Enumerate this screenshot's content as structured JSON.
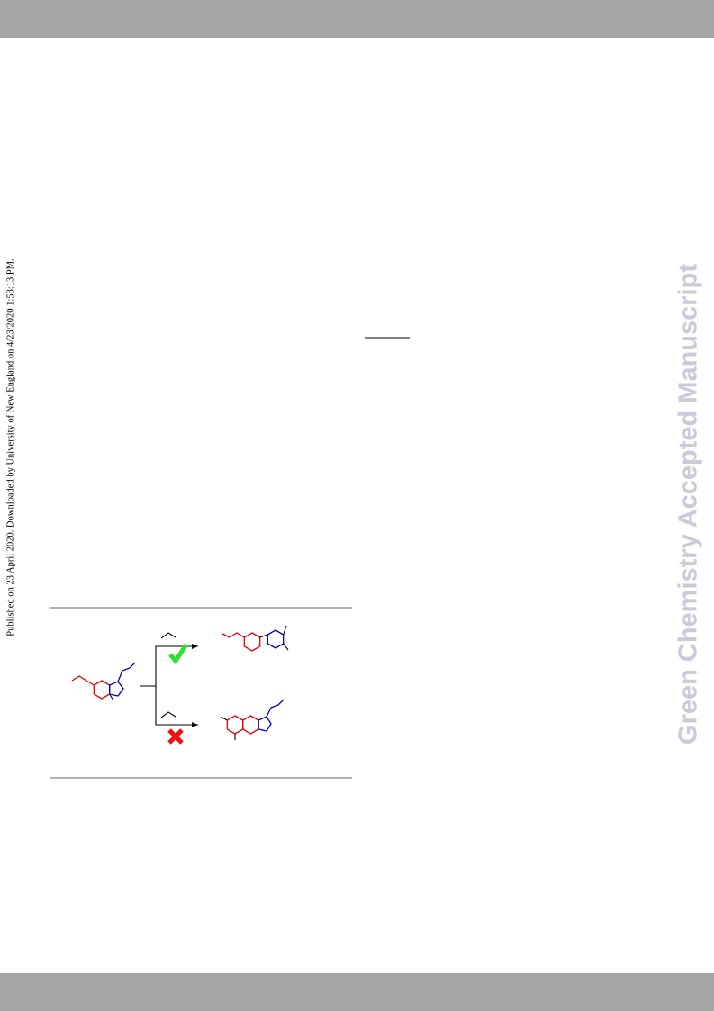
{
  "sidebar_note": "Published on 23 April 2020. Downloaded by University of New England on 4/23/2020 1:53:13 PM.",
  "watermark": "Green Chemistry Accepted Manuscript"
}
